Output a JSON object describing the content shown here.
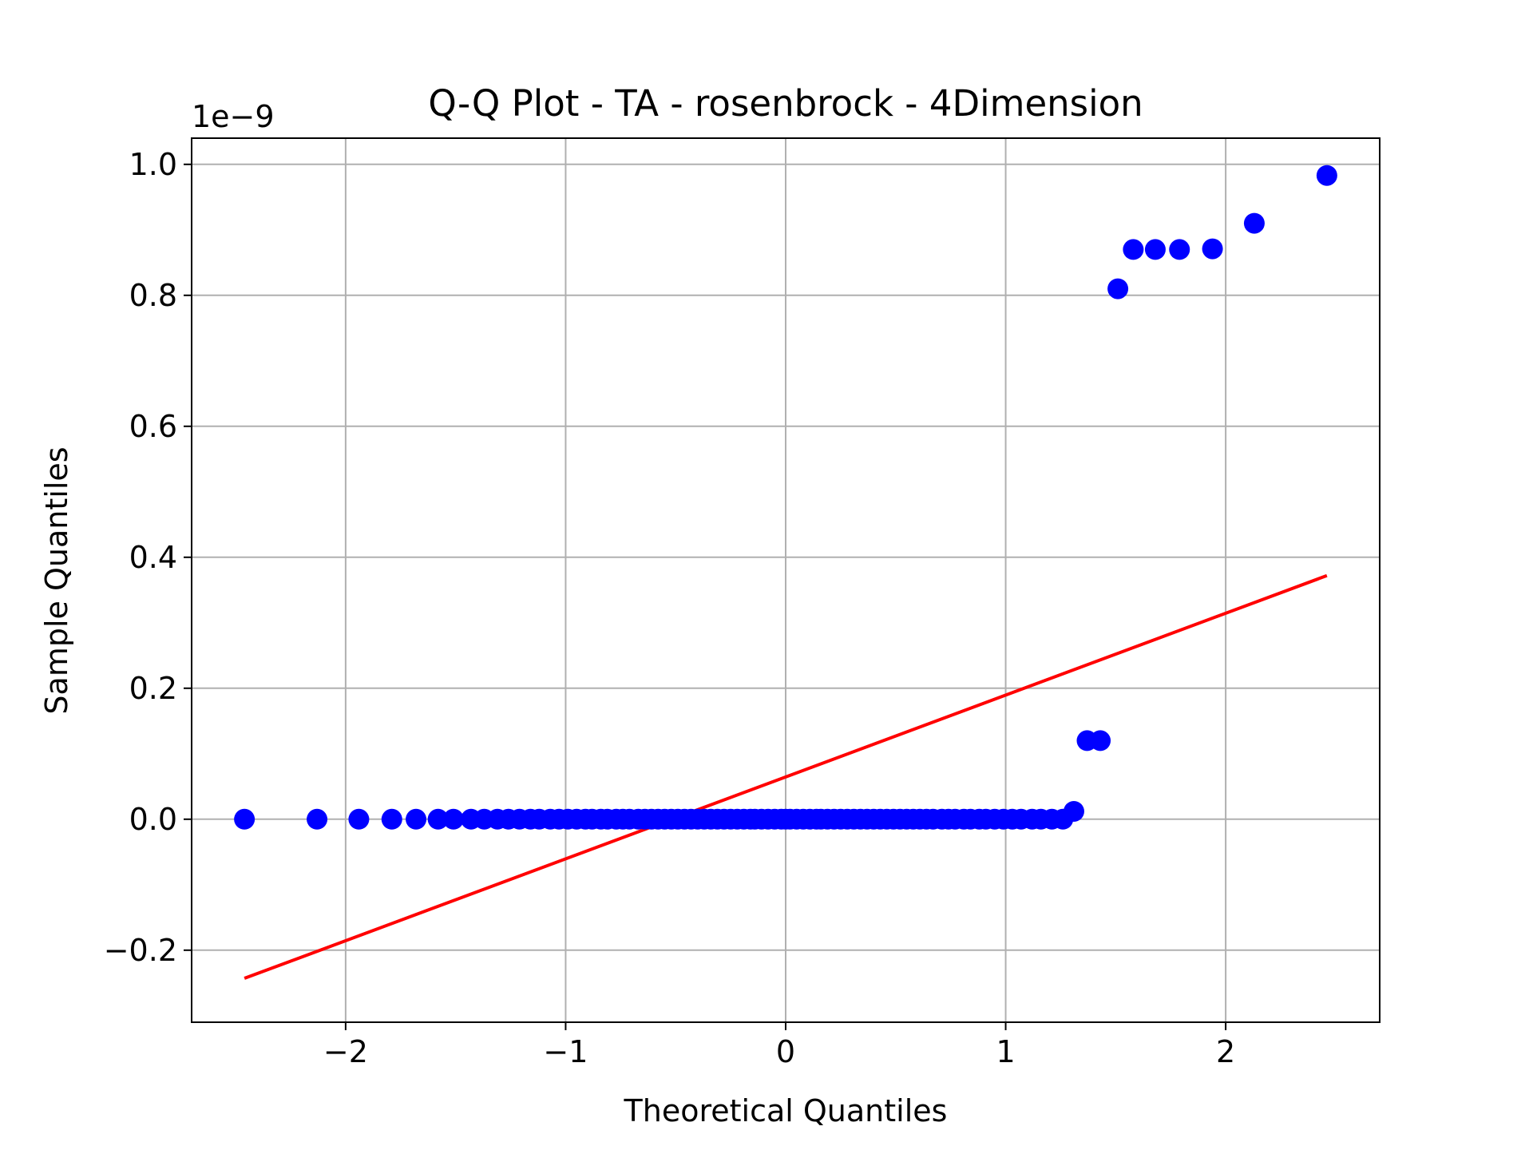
{
  "chart_data": {
    "type": "scatter",
    "title": "Q-Q Plot - TA - rosenbrock - 4Dimension",
    "xlabel": "Theoretical Quantiles",
    "ylabel": "Sample Quantiles",
    "y_offset_label": "1e−9",
    "xlim": [
      -2.7,
      2.7
    ],
    "ylim": [
      -0.31,
      1.04
    ],
    "x_ticks": [
      -2,
      -1,
      0,
      1,
      2
    ],
    "x_tick_labels": [
      "−2",
      "−1",
      "0",
      "1",
      "2"
    ],
    "y_ticks": [
      -0.2,
      0.0,
      0.2,
      0.4,
      0.6,
      0.8,
      1.0
    ],
    "y_tick_labels": [
      "−0.2",
      "0.0",
      "0.2",
      "0.4",
      "0.6",
      "0.8",
      "1.0"
    ],
    "grid": true,
    "series": [
      {
        "kind": "points",
        "color": "#0000ff",
        "x": [
          -2.46,
          -2.13,
          -1.94,
          -1.79,
          -1.68,
          -1.58,
          -1.51,
          -1.43,
          -1.37,
          -1.31,
          -1.26,
          -1.21,
          -1.16,
          -1.12,
          -1.07,
          -1.03,
          -0.99,
          -0.95,
          -0.91,
          -0.88,
          -0.84,
          -0.81,
          -0.77,
          -0.74,
          -0.71,
          -0.67,
          -0.64,
          -0.61,
          -0.58,
          -0.55,
          -0.52,
          -0.49,
          -0.46,
          -0.43,
          -0.4,
          -0.37,
          -0.34,
          -0.31,
          -0.28,
          -0.25,
          -0.22,
          -0.19,
          -0.16,
          -0.14,
          -0.11,
          -0.08,
          -0.05,
          -0.02,
          0.0,
          0.02,
          0.05,
          0.08,
          0.11,
          0.14,
          0.16,
          0.19,
          0.22,
          0.25,
          0.28,
          0.31,
          0.34,
          0.37,
          0.4,
          0.43,
          0.46,
          0.49,
          0.52,
          0.55,
          0.58,
          0.61,
          0.64,
          0.67,
          0.71,
          0.74,
          0.77,
          0.81,
          0.84,
          0.88,
          0.91,
          0.95,
          0.99,
          1.03,
          1.07,
          1.12,
          1.16,
          1.21,
          1.26,
          1.31,
          1.37,
          1.43,
          1.51,
          1.58,
          1.68,
          1.79,
          1.94,
          2.13,
          2.46
        ],
        "y": [
          0.0,
          0.0,
          0.0,
          0.0,
          0.0,
          0.0,
          0.0,
          0.0,
          0.0,
          0.0,
          0.0,
          0.0,
          0.0,
          0.0,
          0.0,
          0.0,
          0.0,
          0.0,
          0.0,
          0.0,
          0.0,
          0.0,
          0.0,
          0.0,
          0.0,
          0.0,
          0.0,
          0.0,
          0.0,
          0.0,
          0.0,
          0.0,
          0.0,
          0.0,
          0.0,
          0.0,
          0.0,
          0.0,
          0.0,
          0.0,
          0.0,
          0.0,
          0.0,
          0.0,
          0.0,
          0.0,
          0.0,
          0.0,
          0.0,
          0.0,
          0.0,
          0.0,
          0.0,
          0.0,
          0.0,
          0.0,
          0.0,
          0.0,
          0.0,
          0.0,
          0.0,
          0.0,
          0.0,
          0.0,
          0.0,
          0.0,
          0.0,
          0.0,
          0.0,
          0.0,
          0.0,
          0.0,
          0.0,
          0.0,
          0.0,
          0.0,
          0.0,
          0.0,
          0.0,
          0.0,
          0.0,
          0.0,
          0.0,
          0.0,
          0.0,
          0.0,
          0.0,
          0.012,
          0.12,
          0.12,
          0.81,
          0.87,
          0.87,
          0.87,
          0.871,
          0.91,
          0.983
        ]
      },
      {
        "kind": "line",
        "color": "#ff0000",
        "x": [
          -2.46,
          2.46
        ],
        "y": [
          -0.243,
          0.372
        ]
      }
    ]
  }
}
